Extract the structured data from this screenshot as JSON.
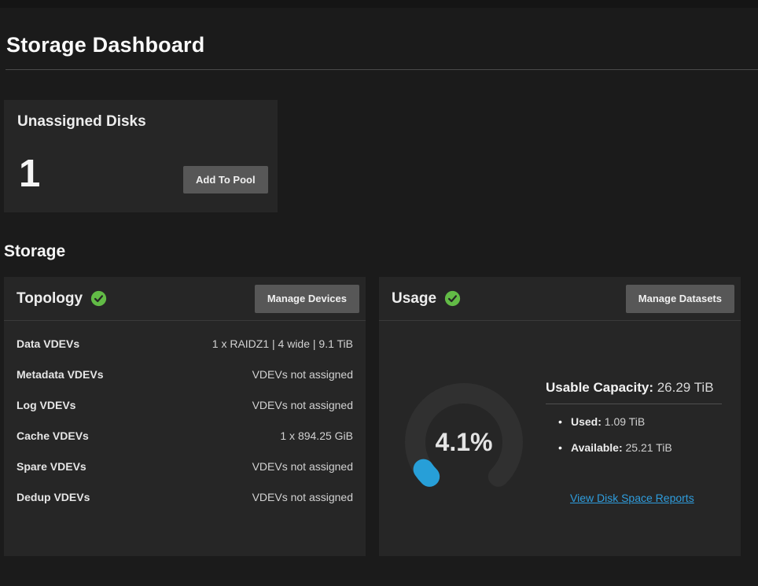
{
  "page": {
    "title": "Storage Dashboard"
  },
  "unassigned": {
    "title": "Unassigned Disks",
    "count": "1",
    "add_button": "Add To Pool"
  },
  "storage_section": {
    "heading": "Storage",
    "topology": {
      "title": "Topology",
      "status": "healthy",
      "manage_button": "Manage Devices",
      "rows": [
        {
          "label": "Data VDEVs",
          "value": "1 x RAIDZ1 | 4 wide | 9.1 TiB"
        },
        {
          "label": "Metadata VDEVs",
          "value": "VDEVs not assigned"
        },
        {
          "label": "Log VDEVs",
          "value": "VDEVs not assigned"
        },
        {
          "label": "Cache VDEVs",
          "value": "1 x 894.25 GiB"
        },
        {
          "label": "Spare VDEVs",
          "value": "VDEVs not assigned"
        },
        {
          "label": "Dedup VDEVs",
          "value": "VDEVs not assigned"
        }
      ]
    },
    "usage": {
      "title": "Usage",
      "status": "healthy",
      "manage_button": "Manage Datasets",
      "gauge": {
        "percent": 4.1,
        "label": "4.1%"
      },
      "usable_capacity_label": "Usable Capacity:",
      "usable_capacity_value": " 26.29 TiB",
      "bullets": [
        {
          "label": "Used:",
          "value": " 1.09 TiB"
        },
        {
          "label": "Available:",
          "value": " 25.21 TiB"
        }
      ],
      "link": "View Disk Space Reports"
    }
  },
  "colors": {
    "accent_blue": "#279fd8",
    "link_blue": "#2f9ddd",
    "success_green": "#62bb46",
    "gauge_track": "#303030"
  }
}
